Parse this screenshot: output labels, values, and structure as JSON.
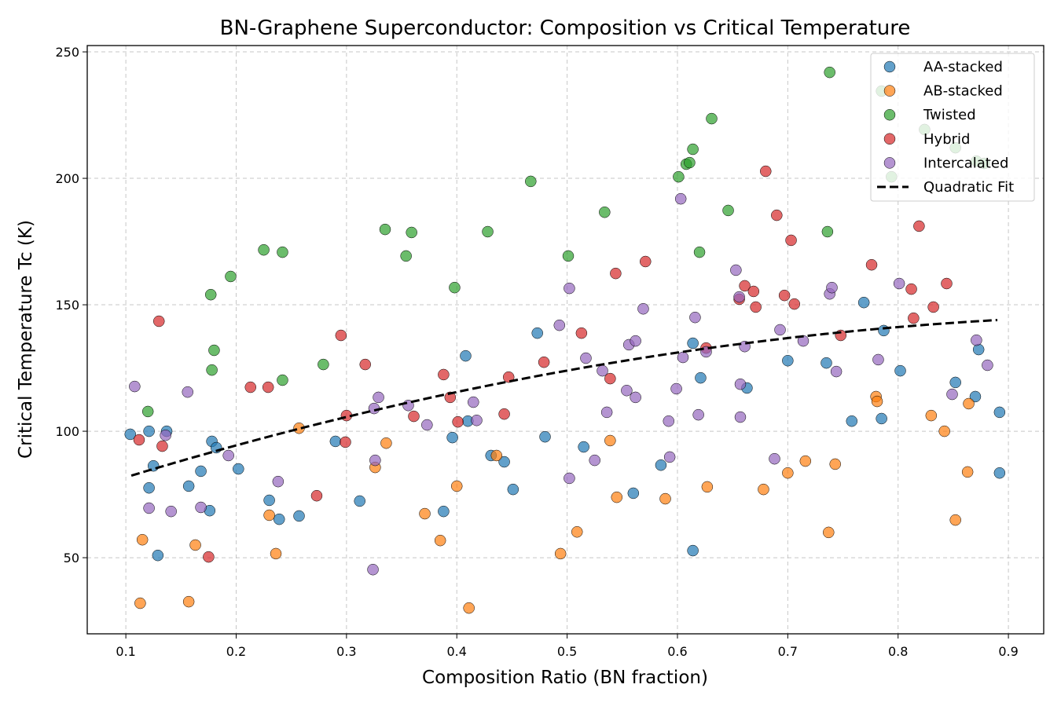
{
  "chart_data": {
    "type": "scatter",
    "title": "BN-Graphene Superconductor: Composition vs Critical Temperature",
    "xlabel": "Composition Ratio (BN fraction)",
    "ylabel": "Critical Temperature Tc (K)",
    "xlim": [
      0.065,
      0.932
    ],
    "ylim": [
      19.9,
      252.5
    ],
    "xticks": [
      0.1,
      0.2,
      0.3,
      0.4,
      0.5,
      0.6,
      0.7,
      0.8,
      0.9
    ],
    "xtick_labels": [
      "0.1",
      "0.2",
      "0.3",
      "0.4",
      "0.5",
      "0.6",
      "0.7",
      "0.8",
      "0.9"
    ],
    "yticks": [
      50,
      100,
      150,
      200,
      250
    ],
    "ytick_labels": [
      "50",
      "100",
      "150",
      "200",
      "250"
    ],
    "grid": true,
    "legend_placement": "top-right",
    "series": [
      {
        "name": "AA-stacked",
        "color": "#1f77b4",
        "points": [
          [
            0.104,
            98.8
          ],
          [
            0.121,
            77.6
          ],
          [
            0.121,
            100
          ],
          [
            0.125,
            86.3
          ],
          [
            0.129,
            50.9
          ],
          [
            0.137,
            100
          ],
          [
            0.157,
            78.3
          ],
          [
            0.168,
            84.2
          ],
          [
            0.176,
            68.6
          ],
          [
            0.178,
            96
          ],
          [
            0.182,
            93.5
          ],
          [
            0.202,
            85.1
          ],
          [
            0.23,
            72.7
          ],
          [
            0.239,
            65.2
          ],
          [
            0.257,
            66.5
          ],
          [
            0.29,
            96
          ],
          [
            0.312,
            72.4
          ],
          [
            0.388,
            68.3
          ],
          [
            0.396,
            97.5
          ],
          [
            0.408,
            129.8
          ],
          [
            0.41,
            104
          ],
          [
            0.431,
            90.4
          ],
          [
            0.443,
            87.9
          ],
          [
            0.451,
            77
          ],
          [
            0.473,
            138.8
          ],
          [
            0.48,
            97.8
          ],
          [
            0.515,
            93.8
          ],
          [
            0.56,
            75.5
          ],
          [
            0.585,
            86.6
          ],
          [
            0.614,
            52.8
          ],
          [
            0.614,
            134.8
          ],
          [
            0.621,
            121.1
          ],
          [
            0.663,
            117.1
          ],
          [
            0.7,
            127.9
          ],
          [
            0.735,
            127
          ],
          [
            0.758,
            104
          ],
          [
            0.769,
            150.9
          ],
          [
            0.785,
            105
          ],
          [
            0.787,
            139.8
          ],
          [
            0.802,
            123.9
          ],
          [
            0.852,
            119.3
          ],
          [
            0.87,
            113.7
          ],
          [
            0.873,
            132.3
          ],
          [
            0.892,
            107.5
          ],
          [
            0.892,
            83.5
          ]
        ]
      },
      {
        "name": "AB-stacked",
        "color": "#ff7f0e",
        "points": [
          [
            0.113,
            32
          ],
          [
            0.115,
            57.1
          ],
          [
            0.157,
            32.6
          ],
          [
            0.163,
            55
          ],
          [
            0.23,
            66.8
          ],
          [
            0.236,
            51.6
          ],
          [
            0.257,
            101.2
          ],
          [
            0.326,
            85.7
          ],
          [
            0.336,
            95.3
          ],
          [
            0.371,
            67.4
          ],
          [
            0.385,
            56.8
          ],
          [
            0.4,
            78.3
          ],
          [
            0.411,
            30.1
          ],
          [
            0.436,
            90.4
          ],
          [
            0.494,
            51.6
          ],
          [
            0.509,
            60.2
          ],
          [
            0.539,
            96.3
          ],
          [
            0.545,
            73.9
          ],
          [
            0.589,
            73.3
          ],
          [
            0.627,
            78
          ],
          [
            0.678,
            77
          ],
          [
            0.7,
            83.5
          ],
          [
            0.716,
            88.2
          ],
          [
            0.737,
            60
          ],
          [
            0.743,
            87
          ],
          [
            0.78,
            113.7
          ],
          [
            0.781,
            111.8
          ],
          [
            0.83,
            106.2
          ],
          [
            0.842,
            100
          ],
          [
            0.852,
            64.9
          ],
          [
            0.863,
            83.9
          ],
          [
            0.864,
            110.9
          ]
        ]
      },
      {
        "name": "Twisted",
        "color": "#2ca02c",
        "points": [
          [
            0.12,
            107.8
          ],
          [
            0.177,
            154
          ],
          [
            0.178,
            124.2
          ],
          [
            0.18,
            132
          ],
          [
            0.195,
            161.2
          ],
          [
            0.225,
            171.7
          ],
          [
            0.242,
            120.2
          ],
          [
            0.242,
            170.8
          ],
          [
            0.279,
            126.4
          ],
          [
            0.335,
            179.8
          ],
          [
            0.354,
            169.3
          ],
          [
            0.359,
            178.6
          ],
          [
            0.398,
            156.8
          ],
          [
            0.428,
            178.9
          ],
          [
            0.467,
            198.8
          ],
          [
            0.501,
            169.3
          ],
          [
            0.534,
            186.6
          ],
          [
            0.601,
            200.6
          ],
          [
            0.608,
            205.6
          ],
          [
            0.611,
            206.2
          ],
          [
            0.614,
            211.5
          ],
          [
            0.62,
            170.8
          ],
          [
            0.631,
            223.6
          ],
          [
            0.646,
            187.3
          ],
          [
            0.736,
            178.9
          ],
          [
            0.738,
            241.9
          ],
          [
            0.785,
            234.5
          ],
          [
            0.794,
            200.6
          ],
          [
            0.824,
            219.3
          ],
          [
            0.852,
            212.1
          ],
          [
            0.871,
            206.8
          ],
          [
            0.878,
            205.9
          ]
        ]
      },
      {
        "name": "Hybrid",
        "color": "#d62728",
        "points": [
          [
            0.112,
            96.6
          ],
          [
            0.13,
            143.5
          ],
          [
            0.133,
            94.1
          ],
          [
            0.175,
            50.3
          ],
          [
            0.213,
            117.4
          ],
          [
            0.229,
            117.4
          ],
          [
            0.273,
            74.5
          ],
          [
            0.295,
            137.9
          ],
          [
            0.299,
            95.7
          ],
          [
            0.3,
            106.2
          ],
          [
            0.317,
            126.4
          ],
          [
            0.361,
            105.9
          ],
          [
            0.388,
            122.4
          ],
          [
            0.394,
            113.4
          ],
          [
            0.401,
            103.7
          ],
          [
            0.443,
            106.8
          ],
          [
            0.447,
            121.4
          ],
          [
            0.479,
            127.3
          ],
          [
            0.513,
            138.8
          ],
          [
            0.539,
            120.8
          ],
          [
            0.544,
            162.4
          ],
          [
            0.571,
            167.1
          ],
          [
            0.626,
            132.9
          ],
          [
            0.656,
            152.2
          ],
          [
            0.661,
            157.5
          ],
          [
            0.669,
            155.3
          ],
          [
            0.671,
            149.1
          ],
          [
            0.68,
            202.8
          ],
          [
            0.69,
            185.4
          ],
          [
            0.697,
            153.7
          ],
          [
            0.703,
            175.5
          ],
          [
            0.706,
            150.3
          ],
          [
            0.748,
            137.9
          ],
          [
            0.776,
            165.8
          ],
          [
            0.812,
            156.2
          ],
          [
            0.814,
            144.7
          ],
          [
            0.819,
            181.1
          ],
          [
            0.832,
            149.1
          ],
          [
            0.844,
            158.4
          ]
        ]
      },
      {
        "name": "Intercalated",
        "color": "#9467bd",
        "points": [
          [
            0.108,
            117.7
          ],
          [
            0.121,
            69.6
          ],
          [
            0.136,
            98.4
          ],
          [
            0.141,
            68.3
          ],
          [
            0.156,
            115.5
          ],
          [
            0.168,
            69.9
          ],
          [
            0.193,
            90.4
          ],
          [
            0.238,
            80.1
          ],
          [
            0.324,
            45.3
          ],
          [
            0.325,
            109
          ],
          [
            0.326,
            88.5
          ],
          [
            0.329,
            113.4
          ],
          [
            0.356,
            110.2
          ],
          [
            0.373,
            102.5
          ],
          [
            0.415,
            111.5
          ],
          [
            0.418,
            104.3
          ],
          [
            0.493,
            141.9
          ],
          [
            0.502,
            81.4
          ],
          [
            0.502,
            156.5
          ],
          [
            0.517,
            128.9
          ],
          [
            0.525,
            88.5
          ],
          [
            0.532,
            123.9
          ],
          [
            0.536,
            107.5
          ],
          [
            0.556,
            134.2
          ],
          [
            0.554,
            116.1
          ],
          [
            0.562,
            113.4
          ],
          [
            0.562,
            135.7
          ],
          [
            0.569,
            148.4
          ],
          [
            0.592,
            104
          ],
          [
            0.593,
            89.8
          ],
          [
            0.599,
            116.8
          ],
          [
            0.603,
            191.9
          ],
          [
            0.605,
            129.2
          ],
          [
            0.616,
            145
          ],
          [
            0.619,
            106.5
          ],
          [
            0.626,
            131.4
          ],
          [
            0.653,
            163.7
          ],
          [
            0.656,
            153.1
          ],
          [
            0.657,
            118.6
          ],
          [
            0.657,
            105.6
          ],
          [
            0.661,
            133.5
          ],
          [
            0.688,
            89.1
          ],
          [
            0.693,
            140.1
          ],
          [
            0.714,
            135.7
          ],
          [
            0.738,
            154.3
          ],
          [
            0.74,
            156.8
          ],
          [
            0.744,
            123.6
          ],
          [
            0.782,
            128.3
          ],
          [
            0.801,
            158.4
          ],
          [
            0.849,
            114.6
          ],
          [
            0.871,
            136
          ],
          [
            0.881,
            126.1
          ]
        ]
      }
    ],
    "fit": {
      "name": "Quadratic Fit",
      "color": "#000000",
      "style": "dashed",
      "coefficients": {
        "a": 67.8,
        "b": 146.75,
        "c": -68.75
      },
      "x_range": [
        0.105,
        0.89
      ]
    }
  }
}
